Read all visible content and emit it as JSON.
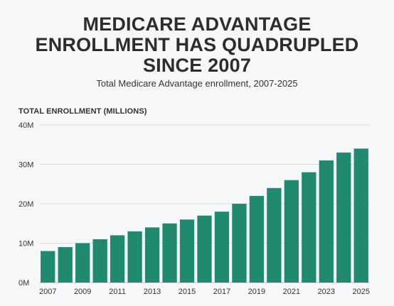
{
  "header": {
    "title_lines": [
      "MEDICARE ADVANTAGE",
      "ENROLLMENT HAS QUADRUPLED",
      "SINCE 2007"
    ],
    "subtitle": "Total Medicare Advantage enrollment, 2007-2025"
  },
  "colors": {
    "bar": "#1f8a70",
    "grid": "#d9dde0",
    "background": "#f6f7f8"
  },
  "chart_data": {
    "type": "bar",
    "ylabel": "TOTAL ENROLLMENT (MILLIONS)",
    "xlabel": "",
    "categories": [
      "2007",
      "2008",
      "2009",
      "2010",
      "2011",
      "2012",
      "2013",
      "2014",
      "2015",
      "2016",
      "2017",
      "2018",
      "2019",
      "2020",
      "2021",
      "2022",
      "2023",
      "2024",
      "2025"
    ],
    "values": [
      8,
      9,
      10,
      11,
      12,
      13,
      14,
      15,
      16,
      17,
      18,
      20,
      22,
      24,
      26,
      28,
      31,
      33,
      34
    ],
    "ylim": [
      0,
      40
    ],
    "y_ticks": [
      0,
      10,
      20,
      30,
      40
    ],
    "y_tick_labels": [
      "0M",
      "10M",
      "20M",
      "30M",
      "40M"
    ],
    "x_tick_labels": [
      "2007",
      "2009",
      "2011",
      "2013",
      "2015",
      "2017",
      "2019",
      "2021",
      "2023",
      "2025"
    ],
    "grid": true
  }
}
